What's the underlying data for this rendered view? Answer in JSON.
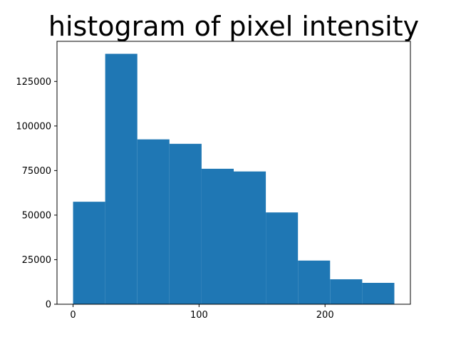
{
  "chart_data": {
    "type": "bar",
    "title": "histogram of pixel intensity",
    "xlabel": "",
    "ylabel": "",
    "bin_edges": [
      0,
      25.5,
      51,
      76.5,
      102,
      127.5,
      153,
      178.5,
      204,
      229.5,
      255
    ],
    "values": [
      57500,
      140500,
      92500,
      90000,
      76000,
      74500,
      51500,
      24500,
      14000,
      12000
    ],
    "xlim": [
      -12.75,
      267.75
    ],
    "ylim": [
      0,
      147500
    ],
    "x_ticks": [
      0,
      100,
      200
    ],
    "x_tick_labels": [
      "0",
      "100",
      "200"
    ],
    "y_ticks": [
      0,
      25000,
      50000,
      75000,
      100000,
      125000
    ],
    "y_tick_labels": [
      "0",
      "25000",
      "50000",
      "75000",
      "100000",
      "125000"
    ],
    "bar_color": "#1f77b4",
    "grid": false,
    "legend": "none"
  }
}
